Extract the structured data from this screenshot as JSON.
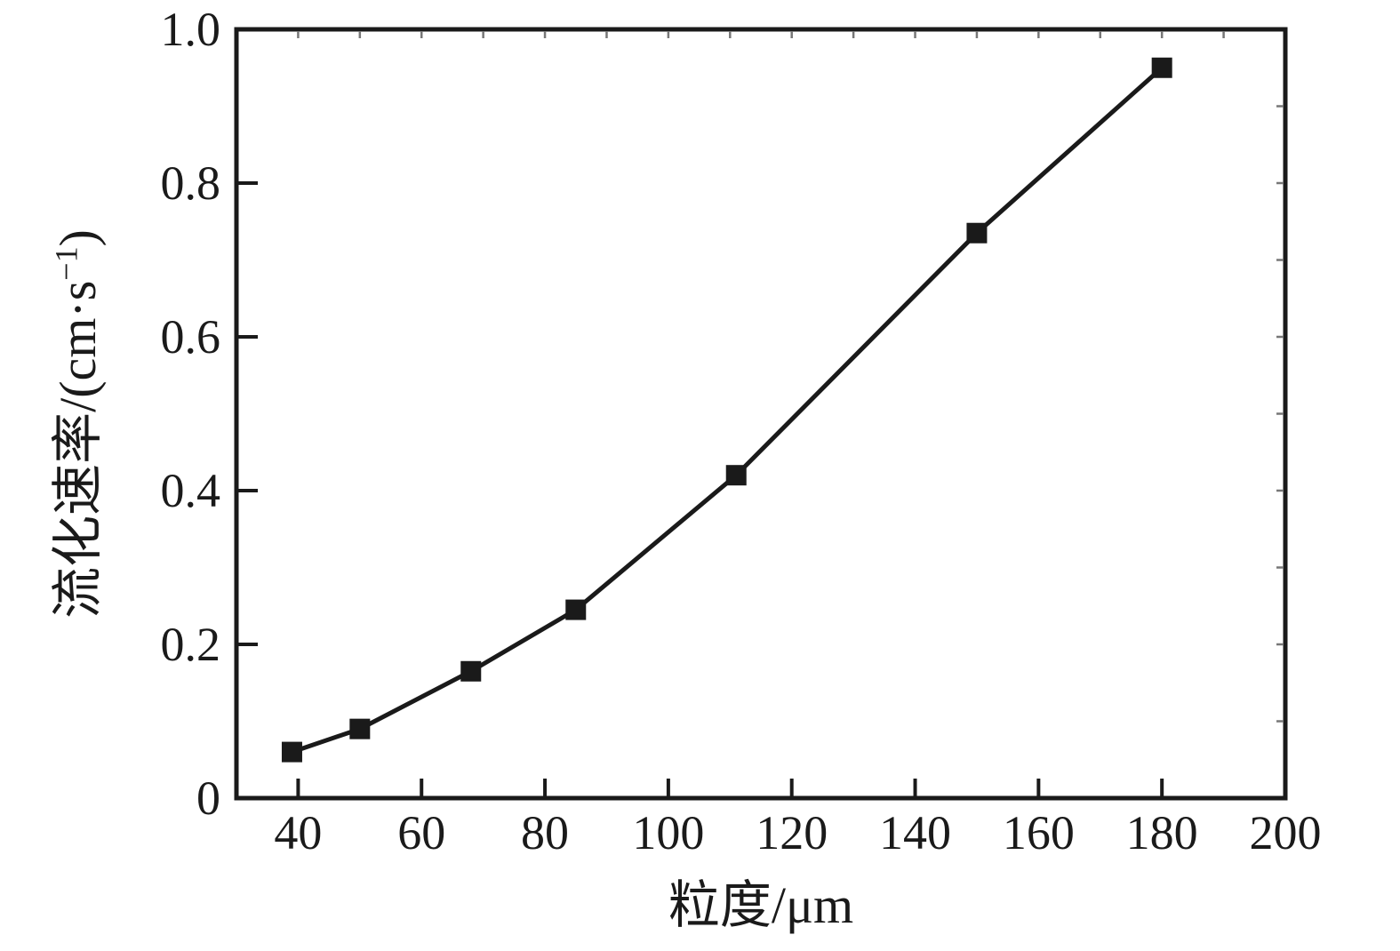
{
  "chart_data": {
    "type": "line",
    "title": "",
    "xlabel": "粒度/μm",
    "ylabel": "流化速率/(cm·s−1)",
    "ylabel_parts": {
      "base": "流化速率/(cm·s",
      "sup": "−1",
      "close": ")"
    },
    "xlim": [
      30,
      200
    ],
    "ylim": [
      0,
      1.0
    ],
    "x_major_ticks": [
      40,
      60,
      80,
      100,
      120,
      140,
      160,
      180,
      200
    ],
    "x_tick_labels": [
      "40",
      "60",
      "80",
      "100",
      "120",
      "140",
      "160",
      "180",
      "200"
    ],
    "y_major_ticks": [
      0,
      0.2,
      0.4,
      0.6,
      0.8,
      1.0
    ],
    "y_tick_labels": [
      "0",
      "0.2",
      "0.4",
      "0.6",
      "0.8",
      "1.0"
    ],
    "x_minor_ticks_top": [
      40,
      50,
      60,
      70,
      80,
      90,
      100,
      110,
      120,
      130,
      140,
      150,
      160,
      170,
      180,
      190
    ],
    "y_minor_ticks_right": [
      0.1,
      0.2,
      0.3,
      0.4,
      0.5,
      0.6,
      0.7,
      0.8,
      0.9
    ],
    "grid": false,
    "legend": "none",
    "frame": true,
    "series": [
      {
        "name": "fluidization-rate",
        "marker": "square",
        "color": "#1a1a1a",
        "x": [
          39,
          50,
          68,
          85,
          111,
          150,
          180
        ],
        "y": [
          0.06,
          0.09,
          0.165,
          0.245,
          0.42,
          0.735,
          0.95
        ]
      }
    ]
  },
  "style": {
    "axis_color": "#1a1a1a",
    "line_color": "#1a1a1a",
    "marker_color": "#1a1a1a",
    "minor_tick_color": "#777777",
    "background": "#ffffff"
  }
}
